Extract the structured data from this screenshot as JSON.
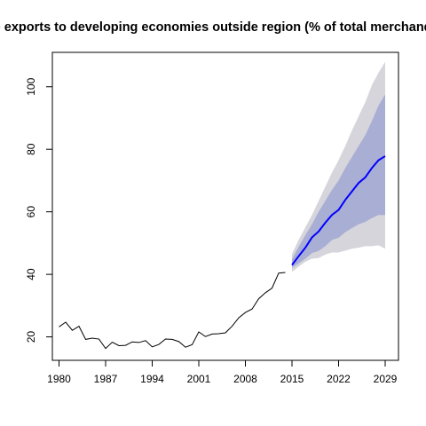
{
  "chart_data": {
    "type": "line",
    "title": "Merchandise exports to developing economies outside region (% of total merchandise exports)",
    "xlabel": "",
    "ylabel": "",
    "xlim": [
      1979,
      2031
    ],
    "ylim": [
      12.5,
      111
    ],
    "x_ticks": [
      1980,
      1987,
      1994,
      2001,
      2008,
      2015,
      2022,
      2029
    ],
    "y_ticks": [
      20,
      40,
      60,
      80,
      100
    ],
    "grid": false,
    "legend": "none",
    "colors": {
      "history": "#000000",
      "forecast": "#0000ff",
      "band_80": "#a9aed4",
      "band_95": "#d5d5db"
    },
    "history": {
      "x": [
        1980,
        1981,
        1982,
        1983,
        1984,
        1985,
        1986,
        1987,
        1988,
        1989,
        1990,
        1991,
        1992,
        1993,
        1994,
        1995,
        1996,
        1997,
        1998,
        1999,
        2000,
        2001,
        2002,
        2003,
        2004,
        2005,
        2006,
        2007,
        2008,
        2009,
        2010,
        2011,
        2012,
        2013,
        2014
      ],
      "y": [
        23.2,
        24.7,
        22.1,
        23.4,
        19.2,
        19.6,
        19.3,
        16.3,
        18.3,
        17.2,
        17.3,
        18.4,
        18.2,
        18.8,
        16.8,
        17.6,
        19.3,
        19.2,
        18.5,
        16.7,
        17.5,
        21.6,
        20.1,
        20.9,
        21.0,
        21.3,
        23.4,
        26.1,
        27.8,
        28.9,
        32.2,
        34.1,
        35.6,
        40.4,
        40.6
      ]
    },
    "forecast": {
      "x": [
        2015,
        2016,
        2017,
        2018,
        2019,
        2020,
        2021,
        2022,
        2023,
        2024,
        2025,
        2026,
        2027,
        2028,
        2029
      ],
      "mean": [
        43.0,
        45.8,
        48.5,
        51.8,
        53.7,
        56.5,
        59.0,
        60.6,
        63.8,
        66.5,
        69.2,
        71.0,
        74.0,
        76.5,
        77.8
      ],
      "lo80": [
        42.1,
        43.5,
        45.0,
        46.8,
        47.5,
        49.0,
        51.0,
        51.7,
        53.5,
        54.8,
        56.0,
        56.8,
        58.0,
        59.0,
        59.0
      ],
      "hi80": [
        44.8,
        48.8,
        52.5,
        56.0,
        60.0,
        63.5,
        67.0,
        70.0,
        74.0,
        77.5,
        81.0,
        84.5,
        89.0,
        94.0,
        97.5
      ],
      "lo95": [
        40.8,
        42.5,
        44.0,
        45.0,
        45.2,
        46.3,
        47.0,
        47.0,
        47.6,
        48.2,
        48.5,
        49.0,
        49.0,
        49.3,
        48.2
      ],
      "hi95": [
        46.5,
        51.0,
        55.0,
        59.0,
        63.5,
        68.0,
        72.5,
        76.5,
        81.0,
        86.0,
        90.5,
        95.0,
        100.5,
        104.5,
        108.0
      ]
    }
  }
}
